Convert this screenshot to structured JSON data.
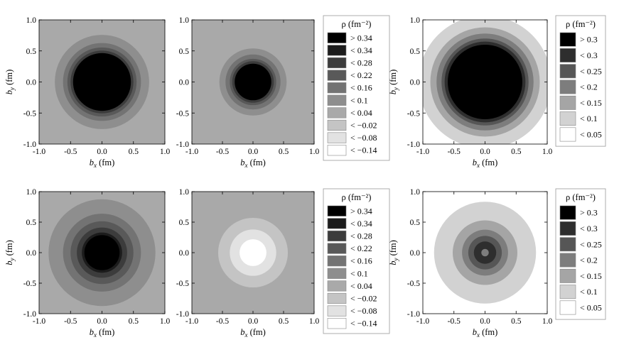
{
  "chart_data": [
    {
      "type": "heatmap",
      "panel": "top-left",
      "xlabel": "b_x (fm)",
      "ylabel": "b_y (fm)",
      "xlim": [
        -1.0,
        1.0
      ],
      "ylim": [
        -1.0,
        1.0
      ],
      "x_ticks": [
        "-1.0",
        "-0.5",
        "0.0",
        "0.5",
        "1.0"
      ],
      "y_ticks": [
        "-1.0",
        "-0.5",
        "0.0",
        "0.5",
        "1.0"
      ],
      "legend": "legend_a",
      "contours": [
        {
          "radius": 1.55,
          "level": "< 0.04"
        },
        {
          "radius": 0.75,
          "level": "< 0.1"
        },
        {
          "radius": 0.62,
          "level": "< 0.16"
        },
        {
          "radius": 0.55,
          "level": "< 0.22"
        },
        {
          "radius": 0.5,
          "level": "< 0.28"
        },
        {
          "radius": 0.46,
          "level": "> 0.34"
        }
      ]
    },
    {
      "type": "heatmap",
      "panel": "top-middle",
      "xlabel": "b_x (fm)",
      "xlim": [
        -1.0,
        1.0
      ],
      "ylim": [
        -1.0,
        1.0
      ],
      "x_ticks": [
        "-1.0",
        "-0.5",
        "0.0",
        "0.5",
        "1.0"
      ],
      "y_ticks": [
        "-1.0",
        "-0.5",
        "0.0",
        "0.5",
        "1.0"
      ],
      "legend": "legend_a",
      "contours": [
        {
          "radius": 1.55,
          "level": "< 0.04"
        },
        {
          "radius": 0.55,
          "level": "< 0.1"
        },
        {
          "radius": 0.45,
          "level": "< 0.16"
        },
        {
          "radius": 0.38,
          "level": "< 0.22"
        },
        {
          "radius": 0.34,
          "level": "< 0.28"
        },
        {
          "radius": 0.3,
          "level": "> 0.34"
        }
      ]
    },
    {
      "type": "heatmap",
      "panel": "top-right",
      "xlabel": "b_x (fm)",
      "ylabel": "b_y (fm)",
      "xlim": [
        -1.0,
        1.0
      ],
      "ylim": [
        -1.0,
        1.0
      ],
      "x_ticks": [
        "-1.0",
        "-0.5",
        "0.0",
        "0.5",
        "1.0"
      ],
      "y_ticks": [
        "-1.0",
        "-0.5",
        "0.0",
        "0.5",
        "1.0"
      ],
      "legend": "legend_b",
      "contours": [
        {
          "radius": 1.07,
          "level": "< 0.1"
        },
        {
          "radius": 0.88,
          "level": "< 0.15"
        },
        {
          "radius": 0.78,
          "level": "< 0.2"
        },
        {
          "radius": 0.7,
          "level": "< 0.25"
        },
        {
          "radius": 0.65,
          "level": "< 0.3"
        },
        {
          "radius": 0.6,
          "level": "> 0.3"
        }
      ]
    },
    {
      "type": "heatmap",
      "panel": "bottom-left",
      "xlabel": "b_x (fm)",
      "ylabel": "b_y (fm)",
      "xlim": [
        -1.0,
        1.0
      ],
      "ylim": [
        -1.0,
        1.0
      ],
      "x_ticks": [
        "-1.0",
        "-0.5",
        "0.0",
        "0.5",
        "1.0"
      ],
      "y_ticks": [
        "-1.0",
        "-0.5",
        "0.0",
        "0.5",
        "1.0"
      ],
      "legend": "legend_a",
      "contours": [
        {
          "radius": 1.55,
          "level": "< 0.04"
        },
        {
          "radius": 0.85,
          "level": "< 0.1"
        },
        {
          "radius": 0.62,
          "level": "< 0.16"
        },
        {
          "radius": 0.5,
          "level": "< 0.22"
        },
        {
          "radius": 0.4,
          "level": "< 0.28"
        },
        {
          "radius": 0.32,
          "level": "< 0.34"
        },
        {
          "radius": 0.28,
          "level": "> 0.34"
        }
      ]
    },
    {
      "type": "heatmap",
      "panel": "bottom-middle",
      "xlabel": "b_x (fm)",
      "xlim": [
        -1.0,
        1.0
      ],
      "ylim": [
        -1.0,
        1.0
      ],
      "x_ticks": [
        "-1.0",
        "-0.5",
        "0.0",
        "0.5",
        "1.0"
      ],
      "y_ticks": [
        "-1.0",
        "-0.5",
        "0.0",
        "0.5",
        "1.0"
      ],
      "legend": "legend_a",
      "contours": [
        {
          "radius": 1.55,
          "level": "< 0.04"
        },
        {
          "radius": 0.57,
          "level": "< -0.02"
        },
        {
          "radius": 0.38,
          "level": "< -0.08"
        },
        {
          "radius": 0.22,
          "level": "< -0.14"
        }
      ]
    },
    {
      "type": "heatmap",
      "panel": "bottom-right",
      "xlabel": "b_x (fm)",
      "ylabel": "b_y (fm)",
      "xlim": [
        -1.0,
        1.0
      ],
      "ylim": [
        -1.0,
        1.0
      ],
      "x_ticks": [
        "-1.0",
        "-0.5",
        "0.0",
        "0.5",
        "1.0"
      ],
      "y_ticks": [
        "-1.0",
        "-0.5",
        "0.0",
        "0.5",
        "1.0"
      ],
      "legend": "legend_b",
      "contours": [
        {
          "radius": 1.07,
          "level": "< 0.05"
        },
        {
          "radius": 0.82,
          "level": "< 0.1"
        },
        {
          "radius": 0.52,
          "level": "< 0.15"
        },
        {
          "radius": 0.37,
          "level": "< 0.2"
        },
        {
          "radius": 0.27,
          "level": "< 0.25"
        },
        {
          "radius": 0.18,
          "level": "< 0.3"
        },
        {
          "radius": 0.06,
          "level": "< 0.2"
        }
      ]
    }
  ],
  "legend_a": {
    "title": "ρ (fm⁻²)",
    "items": [
      {
        "label": "> 0.34",
        "color": "#000000"
      },
      {
        "label": "< 0.34",
        "color": "#1c1c1c"
      },
      {
        "label": "< 0.28",
        "color": "#3c3c3c"
      },
      {
        "label": "< 0.22",
        "color": "#595959"
      },
      {
        "label": "< 0.16",
        "color": "#737373"
      },
      {
        "label": "< 0.1",
        "color": "#8e8e8e"
      },
      {
        "label": "< 0.04",
        "color": "#a9a9a9"
      },
      {
        "label": "< −0.02",
        "color": "#c4c4c4"
      },
      {
        "label": "< −0.08",
        "color": "#e2e2e2"
      },
      {
        "label": "< −0.14",
        "color": "#ffffff"
      }
    ]
  },
  "legend_b": {
    "title": "ρ (fm⁻²)",
    "items": [
      {
        "label": "> 0.3",
        "color": "#000000"
      },
      {
        "label": "< 0.3",
        "color": "#2e2e2e"
      },
      {
        "label": "< 0.25",
        "color": "#565656"
      },
      {
        "label": "< 0.2",
        "color": "#7d7d7d"
      },
      {
        "label": "< 0.15",
        "color": "#a5a5a5"
      },
      {
        "label": "< 0.1",
        "color": "#d2d2d2"
      },
      {
        "label": "< 0.05",
        "color": "#ffffff"
      }
    ]
  },
  "axis_text": {
    "x_var": "b",
    "x_sub": "x",
    "y_var": "b",
    "y_sub": "y",
    "unit": " (fm)"
  }
}
